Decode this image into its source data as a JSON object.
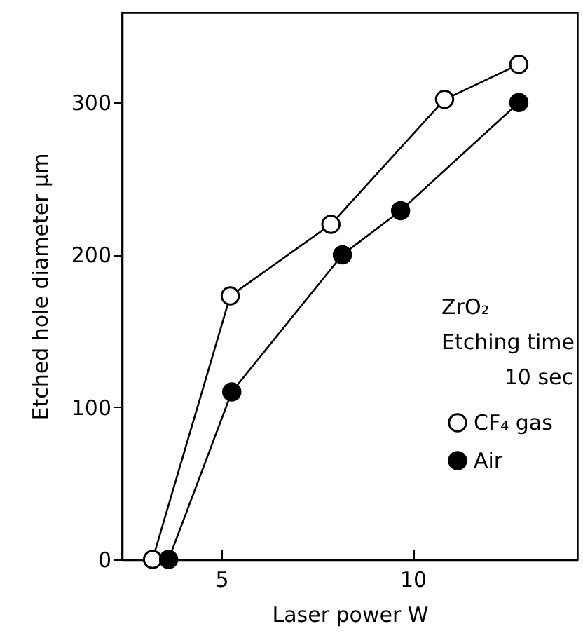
{
  "chart_data": {
    "type": "line",
    "xlabel": "Laser power     W",
    "ylabel": "Etched hole diameter   μm",
    "annotations": [
      "ZrO₂",
      "Etching time",
      "10 sec"
    ],
    "series": [
      {
        "name": "CF₄ gas",
        "color": "#ffffff",
        "x": [
          3.2,
          5.23,
          7.86,
          10.83,
          12.77
        ],
        "values": [
          0,
          173,
          220,
          302,
          325
        ]
      },
      {
        "name": "Air",
        "color": "#000000",
        "x": [
          3.62,
          5.27,
          8.16,
          9.68,
          12.77
        ],
        "values": [
          0,
          110,
          200,
          229,
          300
        ]
      }
    ],
    "xlim": [
      2.4,
      14.3
    ],
    "xticks": [
      5,
      10
    ],
    "ylim": [
      0,
      359
    ],
    "yticks": [
      0,
      100,
      200,
      300
    ],
    "marker": "circle",
    "line_style": "solid",
    "grid": false,
    "legend": "right"
  }
}
